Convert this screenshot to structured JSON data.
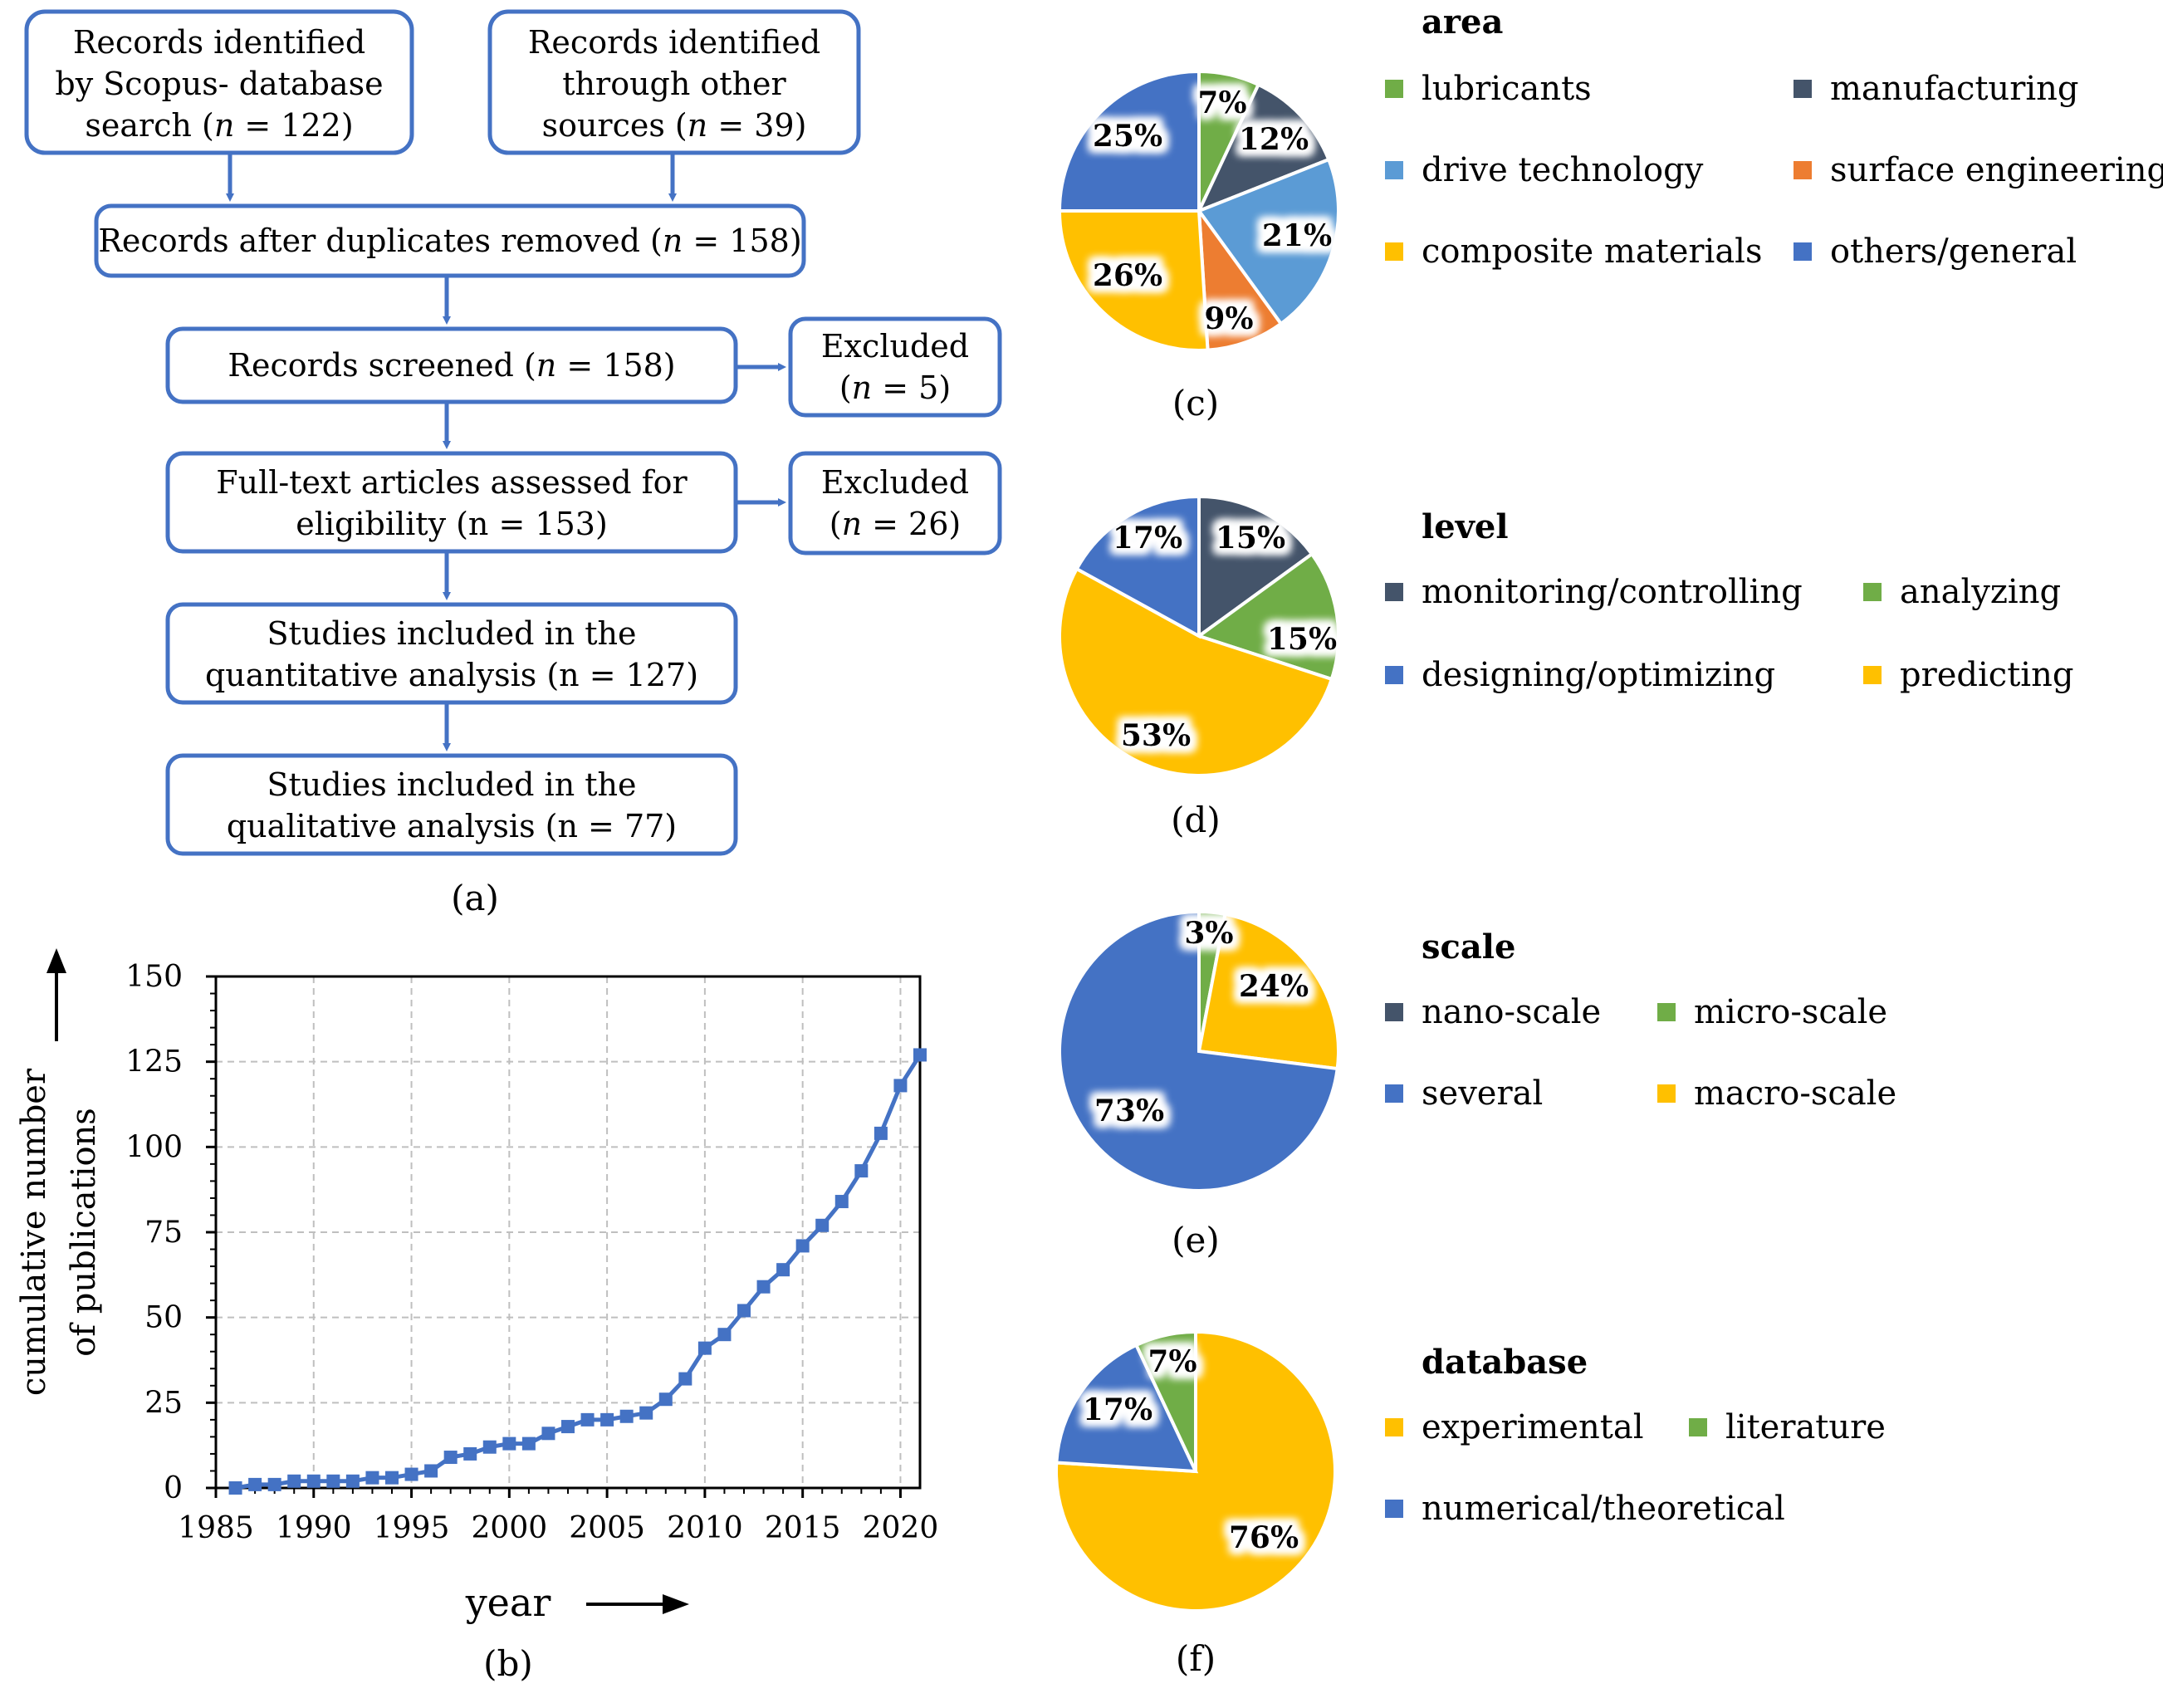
{
  "colors": {
    "border": "#4472c4",
    "green": "#70ad47",
    "navy": "#44546a",
    "light_blue": "#5b9bd5",
    "orange": "#ed7d31",
    "yellow": "#ffc000",
    "blue": "#4472c4",
    "grid": "#bfbfbf"
  },
  "flowchart": {
    "box_scopus": {
      "line1": "Records identified",
      "line2": "by Scopus- database",
      "line3_pre": "search (",
      "line3_post": " = 122)"
    },
    "box_other": {
      "line1": "Records identified",
      "line2": "through other",
      "line3_pre": "sources (",
      "line3_post": " = 39)"
    },
    "box_duplicates": {
      "pre": "Records after duplicates removed (",
      "post": " = 158)"
    },
    "box_screened": {
      "pre": "Records screened (",
      "post": " = 158)"
    },
    "box_excluded1": {
      "line1": "Excluded",
      "line2_pre": "(",
      "line2_post": " = 5)"
    },
    "box_fulltext": {
      "line1": "Full-text articles assessed for",
      "line2": "eligibility (n = 153)"
    },
    "box_excluded2": {
      "line1": "Excluded",
      "line2_pre": "(",
      "line2_post": " = 26)"
    },
    "box_quant": {
      "line1": "Studies included in the",
      "line2": "quantitative analysis (n = 127)"
    },
    "box_qual": {
      "line1": "Studies included in the",
      "line2": "qualitative analysis (n = 77)"
    },
    "n_symbol": "n"
  },
  "panel_labels": {
    "a": "(a)",
    "b": "(b)",
    "c": "(c)",
    "d": "(d)",
    "e": "(e)",
    "f": "(f)"
  },
  "chart_data": [
    {
      "type": "line",
      "panel": "b",
      "title": "",
      "xlabel": "year",
      "ylabel_line1": "cumulative number",
      "ylabel_line2": "of publications",
      "xlim": [
        1985,
        2021
      ],
      "ylim": [
        0,
        150
      ],
      "xticks": [
        1985,
        1990,
        1995,
        2000,
        2005,
        2010,
        2015,
        2020
      ],
      "yticks": [
        0,
        25,
        50,
        75,
        100,
        125,
        150
      ],
      "grid": true,
      "x": [
        1986,
        1987,
        1988,
        1989,
        1990,
        1991,
        1992,
        1993,
        1994,
        1995,
        1996,
        1997,
        1998,
        1999,
        2000,
        2001,
        2002,
        2003,
        2004,
        2005,
        2006,
        2007,
        2008,
        2009,
        2010,
        2011,
        2012,
        2013,
        2014,
        2015,
        2016,
        2017,
        2018,
        2019,
        2020,
        2021
      ],
      "y": [
        0,
        1,
        1,
        2,
        2,
        2,
        2,
        3,
        3,
        4,
        5,
        9,
        10,
        12,
        13,
        13,
        16,
        18,
        20,
        20,
        21,
        22,
        26,
        32,
        41,
        45,
        52,
        59,
        64,
        71,
        77,
        84,
        93,
        104,
        118,
        127
      ]
    },
    {
      "type": "pie",
      "panel": "c",
      "title": "area",
      "slices": [
        {
          "label": "lubricants",
          "value": 7,
          "text": "7%",
          "color": "#70ad47"
        },
        {
          "label": "manufacturing",
          "value": 12,
          "text": "12%",
          "color": "#44546a"
        },
        {
          "label": "drive technology",
          "value": 21,
          "text": "21%",
          "color": "#5b9bd5"
        },
        {
          "label": "surface engineering",
          "value": 9,
          "text": "9%",
          "color": "#ed7d31"
        },
        {
          "label": "composite materials",
          "value": 26,
          "text": "26%",
          "color": "#ffc000"
        },
        {
          "label": "others/general",
          "value": 25,
          "text": "25%",
          "color": "#4472c4"
        }
      ]
    },
    {
      "type": "pie",
      "panel": "d",
      "title": "level",
      "slices": [
        {
          "label": "monitoring/controlling",
          "value": 15,
          "text": "15%",
          "color": "#44546a"
        },
        {
          "label": "analyzing",
          "value": 15,
          "text": "15%",
          "color": "#70ad47"
        },
        {
          "label": "predicting",
          "value": 53,
          "text": "53%",
          "color": "#ffc000"
        },
        {
          "label": "designing/optimizing",
          "value": 17,
          "text": "17%",
          "color": "#4472c4"
        }
      ]
    },
    {
      "type": "pie",
      "panel": "e",
      "title": "scale",
      "slices": [
        {
          "label": "micro-scale",
          "value": 3,
          "text": "3%",
          "color": "#70ad47"
        },
        {
          "label": "macro-scale",
          "value": 24,
          "text": "24%",
          "color": "#ffc000"
        },
        {
          "label": "several",
          "value": 73,
          "text": "73%",
          "color": "#4472c4"
        },
        {
          "label": "nano-scale",
          "value": 0,
          "text": "",
          "color": "#44546a"
        }
      ]
    },
    {
      "type": "pie",
      "panel": "f",
      "title": "database",
      "slices": [
        {
          "label": "experimental",
          "value": 76,
          "text": "76%",
          "color": "#ffc000"
        },
        {
          "label": "numerical/theoretical",
          "value": 17,
          "text": "17%",
          "color": "#4472c4"
        },
        {
          "label": "literature",
          "value": 7,
          "text": "7%",
          "color": "#70ad47"
        }
      ]
    }
  ]
}
